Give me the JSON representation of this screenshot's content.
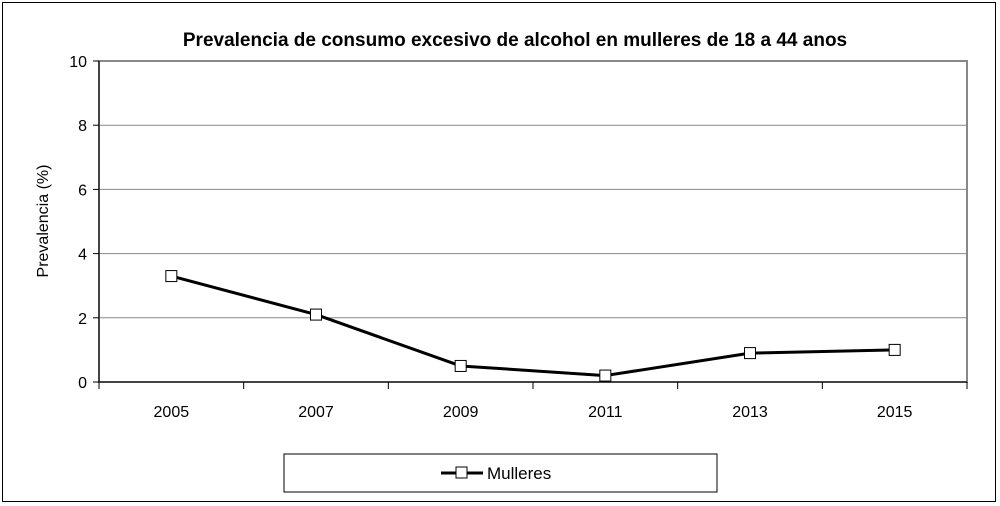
{
  "chart_data": {
    "type": "line",
    "title": "Prevalencia de consumo excesivo de alcohol en mulleres de 18 a 44 anos",
    "xlabel": "",
    "ylabel": "Prevalencia (%)",
    "categories": [
      "2005",
      "2007",
      "2009",
      "2011",
      "2013",
      "2015"
    ],
    "series": [
      {
        "name": "Mulleres",
        "values": [
          3.3,
          2.1,
          0.5,
          0.2,
          0.9,
          1.0
        ]
      }
    ],
    "ylim": [
      0,
      10
    ],
    "yticks": [
      0,
      2,
      4,
      6,
      8,
      10
    ],
    "grid": true,
    "legend_position": "bottom",
    "colors": {
      "line": "#000000",
      "grid": "#888888",
      "plot_border": "#888888",
      "marker_fill": "#ffffff"
    }
  }
}
